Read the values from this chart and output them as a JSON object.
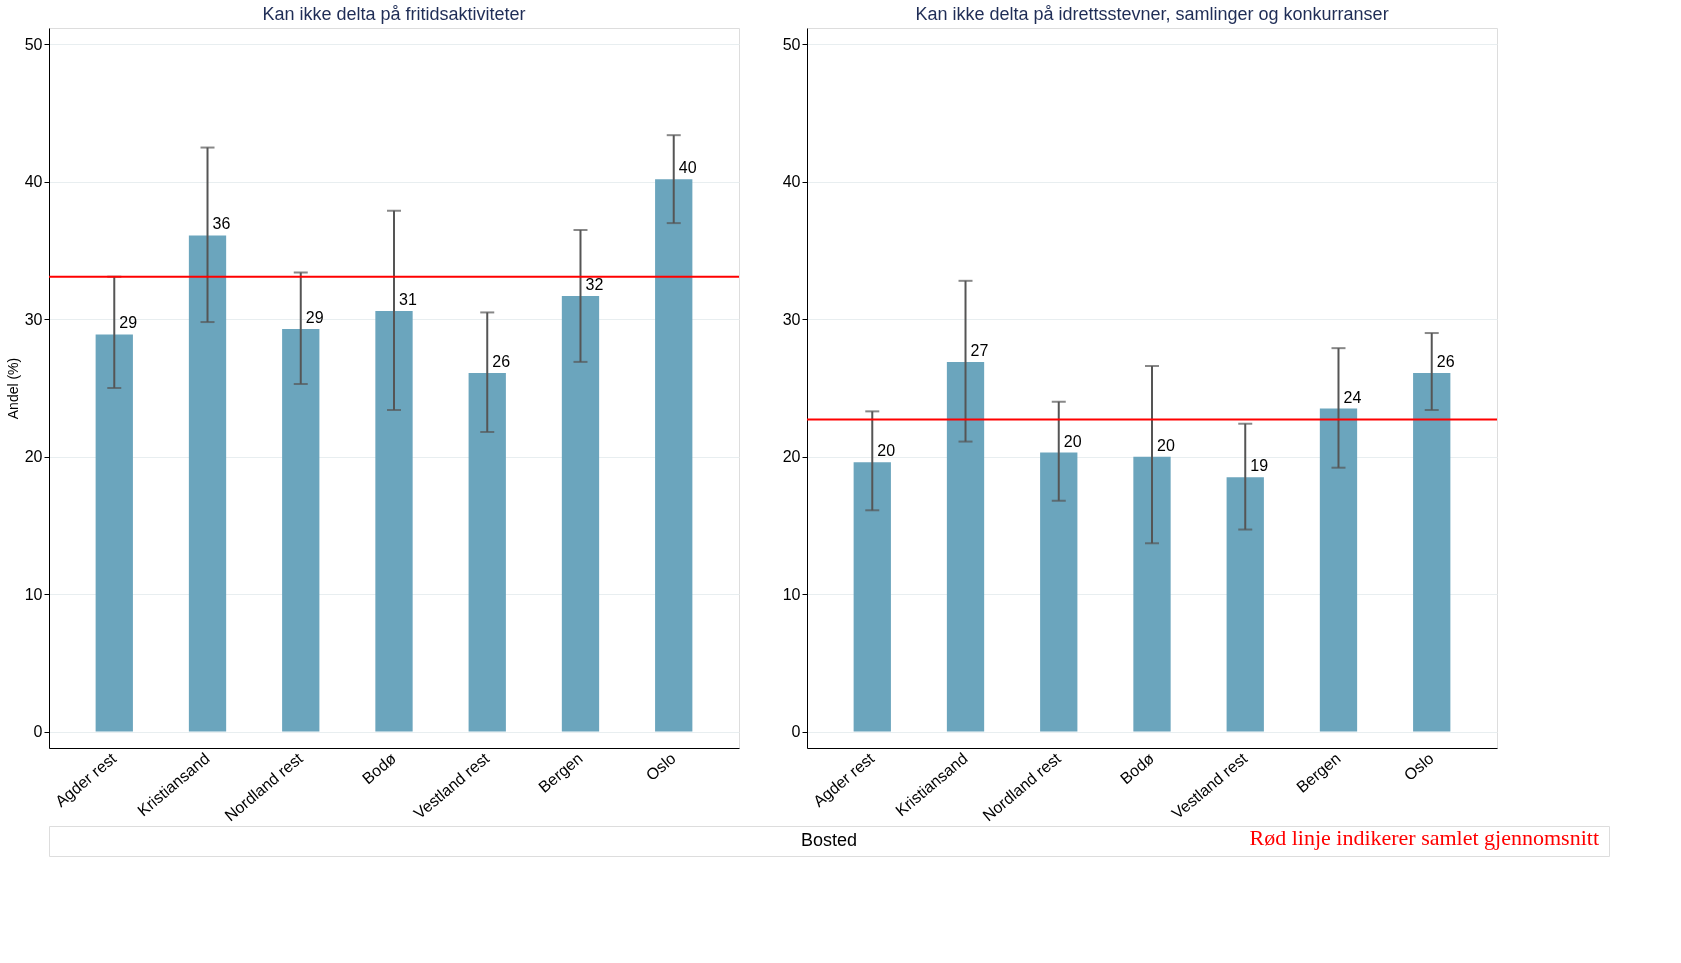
{
  "chart_data": [
    {
      "type": "bar",
      "title": "Kan ikke delta på fritidsaktiviteter",
      "xlabel": "Bosted",
      "ylabel": "Andel (%)",
      "categories": [
        "Agder rest",
        "Kristiansand",
        "Nordland rest",
        "Bodø",
        "Vestland rest",
        "Bergen",
        "Oslo"
      ],
      "series": [
        {
          "color": "#6ba5bd",
          "values": [
            28.9,
            36.1,
            29.3,
            30.6,
            26.1,
            31.7,
            40.2
          ],
          "errors": [
            [
              25.0,
              33.1
            ],
            [
              29.8,
              42.5
            ],
            [
              25.3,
              33.4
            ],
            [
              23.4,
              37.9
            ],
            [
              21.8,
              30.5
            ],
            [
              26.9,
              36.5
            ],
            [
              37.0,
              43.4
            ]
          ],
          "value_labels": [
            "29",
            "36",
            "29",
            "31",
            "26",
            "32",
            "40"
          ]
        }
      ],
      "ref_lines": [
        {
          "axis": "y",
          "value": 33.1,
          "color": "#ff0000"
        }
      ],
      "ylim": [
        -1.2,
        51.2
      ],
      "yticks": [
        0,
        10,
        20,
        30,
        40,
        50
      ],
      "grid": "y"
    },
    {
      "type": "bar",
      "title": "Kan ikke delta på idrettsstevner, samlinger og konkurranser",
      "categories": [
        "Agder rest",
        "Kristiansand",
        "Nordland rest",
        "Bodø",
        "Vestland rest",
        "Bergen",
        "Oslo"
      ],
      "series": [
        {
          "color": "#6ba5bd",
          "values": [
            19.6,
            26.9,
            20.3,
            20.0,
            18.5,
            23.5,
            26.1
          ],
          "errors": [
            [
              16.1,
              23.3
            ],
            [
              21.1,
              32.8
            ],
            [
              16.8,
              24.0
            ],
            [
              13.7,
              26.6
            ],
            [
              14.7,
              22.4
            ],
            [
              19.2,
              27.9
            ],
            [
              23.4,
              29.0
            ]
          ],
          "value_labels": [
            "20",
            "27",
            "20",
            "20",
            "19",
            "24",
            "26"
          ]
        }
      ],
      "ref_lines": [
        {
          "axis": "y",
          "value": 22.7,
          "color": "#ff0000"
        }
      ],
      "annotations": [
        "Rød linje indikerer samlet gjennomsnitt"
      ],
      "ylim": [
        -1.2,
        51.2
      ],
      "yticks": [
        0,
        10,
        20,
        30,
        40,
        50
      ],
      "grid": "y"
    }
  ]
}
